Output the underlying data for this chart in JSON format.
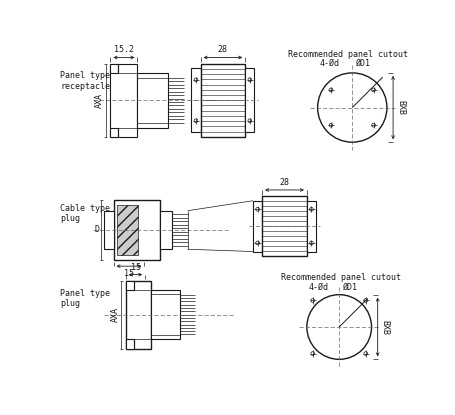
{
  "bg_color": "#ffffff",
  "line_color": "#1a1a1a",
  "lw": 0.8,
  "lw_thin": 0.5,
  "lw_thick": 1.0,
  "fs_label": 6.0,
  "fs_dim": 6.0,
  "panel_receptacle_label": "Panel type\nreceptacle",
  "cable_plug_label": "Cable type\nplug",
  "panel_plug_label": "Panel type\nplug",
  "cutout_label1": "Recommended panel cutout",
  "cutout_label2": "Recommended panel cutout",
  "dim_152": "15.2",
  "dim_28a": "28",
  "dim_28b": "28",
  "dim_15a": "15",
  "dim_15b": "15",
  "dim_AXA": "AXA",
  "dim_D": "D",
  "dim_4phid": "4-Ød",
  "dim_phiD1": "ØD1",
  "dim_BXB": "BXB",
  "dim_4phid2": "4-Ød",
  "dim_phiD12": "ØD1",
  "dim_BXB2": "BXB"
}
